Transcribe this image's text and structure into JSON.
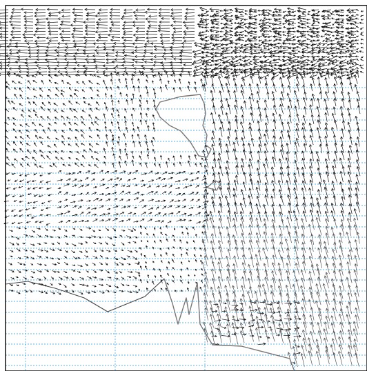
{
  "map": {
    "type": "vector-field",
    "grid_lines": true,
    "grid_style": "dashed",
    "colors": {
      "grid": "#5ab2e6",
      "vectors": "#111111",
      "coast": "#777777",
      "frame": "#000000"
    },
    "features": [
      "wind-vectors",
      "coastline",
      "island",
      "dashed-graticule"
    ],
    "labels": []
  }
}
